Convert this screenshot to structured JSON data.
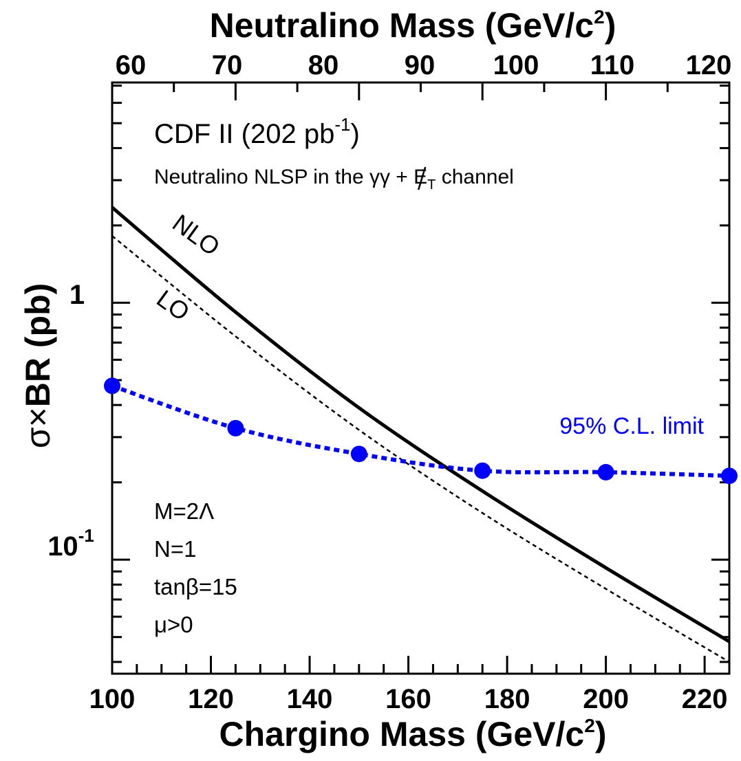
{
  "chart_data": {
    "type": "line",
    "yscale": "log",
    "xlim": [
      100,
      225
    ],
    "ylim": [
      0.036,
      7.2
    ],
    "top_axis": {
      "title": "Neutralino Mass (GeV/c",
      "title_sup": "2",
      "title_close": ")",
      "ticks": [
        {
          "label": "60",
          "at_chargino_mass": 100
        },
        {
          "label": "70",
          "at_chargino_mass": 125
        },
        {
          "label": "80",
          "at_chargino_mass": 150
        },
        {
          "label": "90",
          "at_chargino_mass": 175
        },
        {
          "label": "100",
          "at_chargino_mass": 200
        },
        {
          "label": "110",
          "at_chargino_mass": 225
        },
        {
          "label": "120",
          "at_chargino_mass": 250
        }
      ]
    },
    "bottom_axis": {
      "title": "Chargino Mass (GeV/c",
      "title_sup": "2",
      "title_close": ")",
      "tick_labels": [
        "100",
        "120",
        "140",
        "160",
        "180",
        "200",
        "220"
      ],
      "tick_values": [
        100,
        120,
        140,
        160,
        180,
        200,
        220
      ]
    },
    "left_axis": {
      "title_sigma": "σ",
      "title_times": "×",
      "title_rest": "BR  (pb)",
      "tick_labels": [
        {
          "base": "1",
          "exp": "",
          "value": 1
        },
        {
          "base": "10",
          "exp": "-1",
          "value": 0.1
        }
      ]
    },
    "series": [
      {
        "name": "NLO",
        "style": "solid",
        "color": "#000000",
        "x": [
          100,
          125,
          150,
          175,
          200,
          225
        ],
        "y": [
          2.35,
          0.92,
          0.39,
          0.185,
          0.093,
          0.048
        ]
      },
      {
        "name": "LO",
        "style": "dashed",
        "color": "#000000",
        "x": [
          100,
          125,
          150,
          175,
          200,
          225
        ],
        "y": [
          1.82,
          0.74,
          0.32,
          0.152,
          0.077,
          0.04
        ]
      },
      {
        "name": "95% C.L. limit",
        "style": "dotted-with-markers",
        "color": "#0000ff",
        "x": [
          100,
          125,
          150,
          175,
          200,
          225
        ],
        "y": [
          0.475,
          0.325,
          0.258,
          0.222,
          0.219,
          0.212
        ]
      }
    ],
    "annotations": {
      "experiment": "CDF II (202 pb",
      "experiment_sup": "-1",
      "experiment_close": ")",
      "subtitle_pre": "Neutralino NLSP in the γγ + ",
      "subtitle_met": "E",
      "subtitle_met_sub": "T",
      "subtitle_post": " channel",
      "nlo_label": "NLO",
      "lo_label": "LO",
      "limit_label": "95% C.L. limit",
      "params": [
        "M=2Λ",
        "N=1",
        "tanβ=15",
        "μ>0"
      ]
    },
    "grid": false
  }
}
